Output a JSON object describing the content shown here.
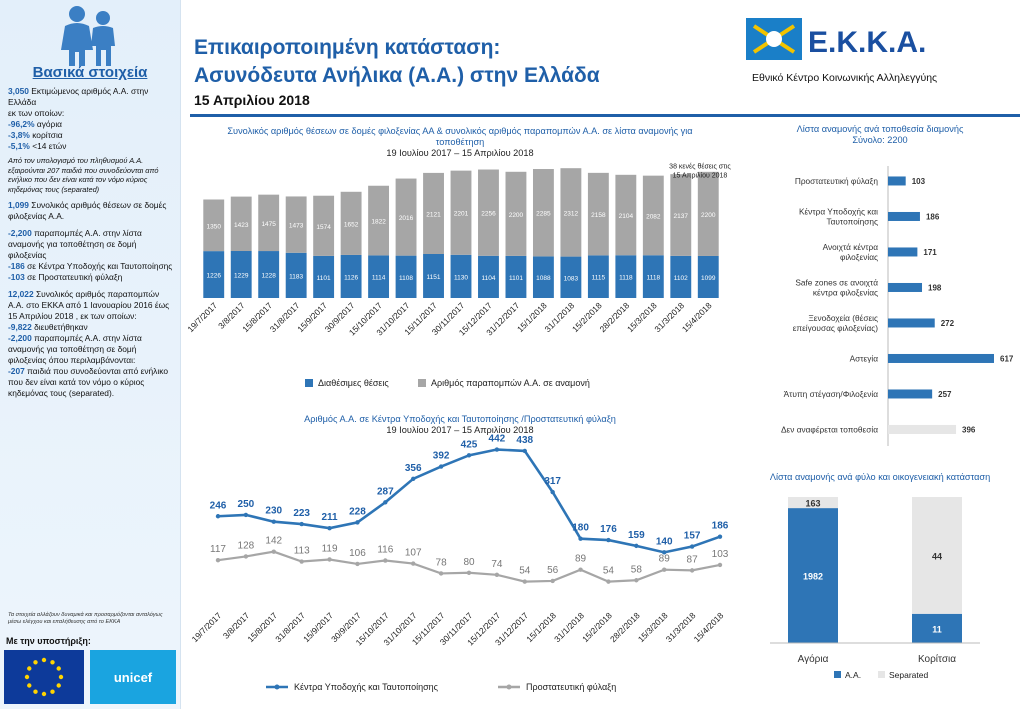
{
  "sidebar": {
    "title": "Βασικά στοιχεία",
    "p1": {
      "num": "3,050",
      "text1": " Εκτιμώμενος αριθμός Α.Α. στην Ελλάδα",
      "text2": "εκ των οποίων:",
      "l1num": "-96,2%",
      "l1": " αγόρια",
      "l2num": "-3,8%",
      "l2": " κορίτσια",
      "l3num": "-5,1%",
      "l3": "  <14 ετών",
      "italic": "Από τον υπολογισμό του πληθυσμού Α.Α. εξαιρούνται 207 παιδιά που συνοδεύονται από ενήλικο που δεν είναι κατά τον νόμο κύριος κηδεμόνας τους (separated)"
    },
    "p2": {
      "num": "1,099",
      "text": " Συνολικός αριθμός θέσεων σε δομές φιλοξενίας Α.Α."
    },
    "p3": {
      "l1num": "-2,200",
      "l1": " παραπομπές Α.Α. στην λίστα αναμονής για τοποθέτηση σε δομή φιλοξενίας",
      "l2num": "-186",
      "l2": " σε Κέντρα Υποδοχής και Ταυτοποίησης",
      "l3num": "-103",
      "l3": " σε Προστατευτική φύλαξη"
    },
    "p4": {
      "num": "12,022",
      "text": " Συνολικός αριθμός παραπομπών Α.Α. στο ΕΚΚΑ από 1 Ιανουαρίου 2016 έως 15 Απριλίου 2018 , εκ των οποίων:",
      "l1num": "-9,822",
      "l1": " διευθετήθηκαν",
      "l2num": "-2,200",
      "l2": " παραπομπές Α.Α. στην λίστα αναμονής για τοποθέτηση σε δομή φιλοξενίας όπου περιλαμβάνονται:",
      "l3num": "-207",
      "l3": " παιδιά που συνοδεύονται από ενήλικο που δεν είναι κατά τον νόμο ο κύριος κηδεμόνας τους (separated)."
    },
    "note": "Τα στοιχεία αλλάζουν δυναμικά και προσαρμόζονται ανταλόγως μέσω ελέγχου και επαλήθευσης από το ΕΚΚΑ",
    "supported_by": "Με την υποστήριξη:",
    "unicef": "unicef"
  },
  "header": {
    "title_line1": "Επικαιροποιημένη κατάσταση:",
    "title_line2": "Ασυνόδευτα Ανήλικα (Α.Α.) στην Ελλάδα",
    "date": "15 Απριλίου 2018",
    "org_name": "Εθνικό Κέντρο Κοινωνικής Αλληλεγγύης",
    "org_logo_text": "Ε.Κ.Κ.Α."
  },
  "colors": {
    "blue": "#2e75b6",
    "gray": "#a6a6a6",
    "light_gray": "#e6e6e6",
    "title_blue": "#1f5fa8"
  },
  "chart_data": [
    {
      "type": "bar",
      "stacked": true,
      "title": "Συνολικός αριθμός θέσεων σε δομές φιλοξενίας ΑΑ & συνολικός αριθμός παραπομπών Α.Α. σε λίστα αναμονής για τοποθέτηση",
      "subtitle": "19 Ιουλίου 2017 – 15 Απριλίου 2018",
      "annotation": "38 κενές θέσεις στις 15 Απριλίου 2018",
      "categories": [
        "19/7/2017",
        "3/8/2017",
        "15/8/2017",
        "31/8/2017",
        "15/9/2017",
        "30/9/2017",
        "15/10/2017",
        "31/10/2017",
        "15/11/2017",
        "30/11/2017",
        "15/12/2017",
        "31/12/2017",
        "15/1/2018",
        "31/1/2018",
        "15/2/2018",
        "28/2/2018",
        "15/3/2018",
        "31/3/2018",
        "15/4/2018"
      ],
      "series": [
        {
          "name": "Διαθέσιμες θέσεις",
          "values": [
            1226,
            1229,
            1228,
            1183,
            1101,
            1126,
            1114,
            1108,
            1151,
            1130,
            1104,
            1101,
            1088,
            1083,
            1115,
            1118,
            1118,
            1102,
            1099
          ]
        },
        {
          "name": "Αριθμός παραπομπών Α.Α. σε αναμονή",
          "values": [
            1350,
            1423,
            1475,
            1473,
            1574,
            1652,
            1822,
            2016,
            2121,
            2201,
            2256,
            2200,
            2285,
            2312,
            2158,
            2104,
            2082,
            2137,
            2200
          ]
        }
      ],
      "legend": "bottom"
    },
    {
      "type": "line",
      "title": "Αριθμός Α.Α. σε Κέντρα Υποδοχής και Ταυτοποίησης /Προστατευτική φύλαξη",
      "subtitle": "19 Ιουλίου 2017 – 15 Απριλίου 2018",
      "categories": [
        "19/7/2017",
        "3/8/2017",
        "15/8/2017",
        "31/8/2017",
        "15/9/2017",
        "30/9/2017",
        "15/10/2017",
        "31/10/2017",
        "15/11/2017",
        "30/11/2017",
        "15/12/2017",
        "31/12/2017",
        "15/1/2018",
        "31/1/2018",
        "15/2/2018",
        "28/2/2018",
        "15/3/2018",
        "31/3/2018",
        "15/4/2018"
      ],
      "series": [
        {
          "name": "Κέντρα Υποδοχής και Ταυτοποίησης",
          "values": [
            246,
            250,
            230,
            223,
            211,
            228,
            287,
            356,
            392,
            425,
            442,
            438,
            317,
            180,
            176,
            159,
            140,
            157,
            186
          ]
        },
        {
          "name": "Προστατευτική φύλαξη",
          "values": [
            117,
            128,
            142,
            113,
            119,
            106,
            116,
            107,
            78,
            80,
            74,
            54,
            56,
            89,
            54,
            58,
            89,
            87,
            103
          ]
        }
      ],
      "legend": "bottom"
    },
    {
      "type": "bar",
      "orientation": "horizontal",
      "title": "Λίστα αναμονής ανά τοποθεσία διαμονής",
      "subtitle": "Σύνολο: 2200",
      "categories": [
        "Προστατευτική φύλαξη",
        "Κέντρα Υποδοχής και Ταυτοποίησης",
        "Ανοιχτά κέντρα φιλοξενίας",
        "Safe zones σε ανοιχτά κέντρα φιλοξενίας",
        "Ξενοδοχεία (θέσεις επείγουσας φιλοξενίας)",
        "Αστεγία",
        "Άτυπη στέγαση/Φιλοξενία",
        "Δεν αναφέρεται τοποθεσία"
      ],
      "values": [
        103,
        186,
        171,
        198,
        272,
        617,
        257,
        396
      ]
    },
    {
      "type": "bar",
      "stacked": true,
      "title": "Λίστα αναμονής ανά φύλο και οικογενειακή κατάσταση",
      "categories": [
        "Αγόρια",
        "Κορίτσια"
      ],
      "series": [
        {
          "name": "Α.Α.",
          "values": [
            1982,
            11
          ]
        },
        {
          "name": "Separated",
          "values": [
            163,
            44
          ]
        }
      ],
      "legend": "bottom"
    }
  ]
}
